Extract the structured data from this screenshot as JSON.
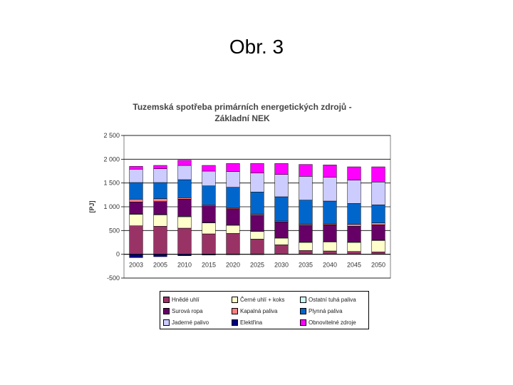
{
  "slide": {
    "title": "Obr. 3"
  },
  "chart_data": {
    "type": "bar",
    "stacked": true,
    "title_lines": [
      "Tuzemská spotřeba primárních energetických zdrojů -",
      "Základní NEK"
    ],
    "xlabel": "",
    "ylabel": "[PJ]",
    "ylim": [
      -500,
      2500
    ],
    "yticks": [
      -500,
      0,
      500,
      1000,
      1500,
      2000,
      2500
    ],
    "ytick_labels": [
      "-500",
      "0",
      "500",
      "1 000",
      "1 500",
      "2 000",
      "2 500"
    ],
    "grid": true,
    "legend_position": "bottom",
    "categories": [
      "2003",
      "2005",
      "2010",
      "2015",
      "2020",
      "2025",
      "2030",
      "2035",
      "2040",
      "2045",
      "2050"
    ],
    "series": [
      {
        "name": "Hnědé uhlí",
        "color": "#993366",
        "values": [
          600,
          590,
          550,
          430,
          440,
          320,
          200,
          80,
          70,
          60,
          50
        ]
      },
      {
        "name": "Černé uhlí + koks",
        "color": "#FFFFCC",
        "values": [
          240,
          240,
          240,
          230,
          170,
          160,
          140,
          170,
          190,
          190,
          240
        ]
      },
      {
        "name": "Ostatní tuhá paliva",
        "color": "#CCFFFF",
        "values": [
          10,
          10,
          10,
          10,
          10,
          10,
          10,
          10,
          10,
          10,
          10
        ]
      },
      {
        "name": "Surová ropa",
        "color": "#660066",
        "values": [
          250,
          270,
          360,
          350,
          340,
          330,
          330,
          350,
          350,
          330,
          320
        ]
      },
      {
        "name": "Kapalná paliva",
        "color": "#FF8080",
        "values": [
          60,
          60,
          30,
          20,
          20,
          20,
          20,
          20,
          20,
          40,
          40
        ]
      },
      {
        "name": "Plynná paliva",
        "color": "#0066CC",
        "values": [
          350,
          340,
          380,
          400,
          430,
          470,
          510,
          510,
          480,
          440,
          380
        ]
      },
      {
        "name": "Jaderné palivo",
        "color": "#CCCCFF",
        "values": [
          280,
          290,
          300,
          310,
          330,
          400,
          470,
          500,
          500,
          490,
          480
        ]
      },
      {
        "name": "Elektřina",
        "color": "#000080",
        "values": [
          -70,
          -50,
          -30,
          -15,
          -10,
          -5,
          0,
          0,
          0,
          0,
          0
        ]
      },
      {
        "name": "Obnovitelné zdroje",
        "color": "#FF00FF",
        "values": [
          60,
          70,
          110,
          120,
          170,
          200,
          230,
          250,
          260,
          280,
          320
        ]
      }
    ],
    "legend_order": [
      "Hnědé uhlí",
      "Černé uhlí + koks",
      "Ostatní tuhá paliva",
      "Surová ropa",
      "Kapalná paliva",
      "Plynná paliva",
      "Jaderné palivo",
      "Elektřina",
      "Obnovitelné zdroje"
    ]
  }
}
